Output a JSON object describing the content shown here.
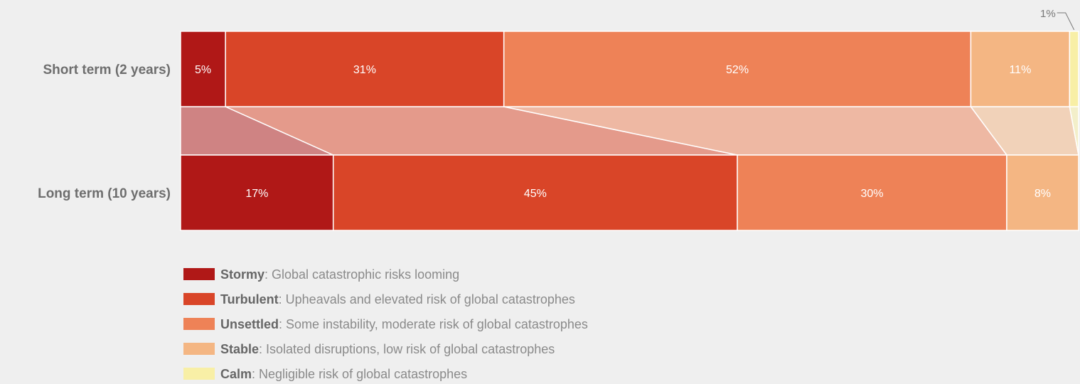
{
  "chart_data": {
    "type": "bar",
    "orientation": "horizontal",
    "stacked": true,
    "normalized_percent": true,
    "categories": [
      "Short term (2 years)",
      "Long term (10 years)"
    ],
    "series": [
      {
        "name": "Stormy",
        "description": ": Global catastrophic risks looming",
        "color": "#b01817",
        "values": [
          5,
          17
        ],
        "labels": [
          "5%",
          "17%"
        ]
      },
      {
        "name": "Turbulent",
        "description": ": Upheavals and elevated risk of global catastrophes",
        "color": "#d94528",
        "values": [
          31,
          45
        ],
        "labels": [
          "31%",
          "45%"
        ]
      },
      {
        "name": "Unsettled",
        "description": ": Some instability, moderate risk of global catastrophes",
        "color": "#ee8257",
        "values": [
          52,
          30
        ],
        "labels": [
          "52%",
          "30%"
        ]
      },
      {
        "name": "Stable",
        "description": ": Isolated disruptions, low risk of global catastrophes",
        "color": "#f4b683",
        "values": [
          11,
          8
        ],
        "labels": [
          "11%",
          "8%"
        ]
      },
      {
        "name": "Calm",
        "description": ": Negligible risk of global catastrophes",
        "color": "#f8efa6",
        "values": [
          1,
          0
        ],
        "labels": [
          "1%",
          ""
        ]
      }
    ],
    "callout": {
      "series": "Calm",
      "category": "Short term (2 years)",
      "text": "1%"
    },
    "legend_position": "bottom-left",
    "grid": false,
    "title": "",
    "xlabel": "",
    "ylabel": ""
  }
}
